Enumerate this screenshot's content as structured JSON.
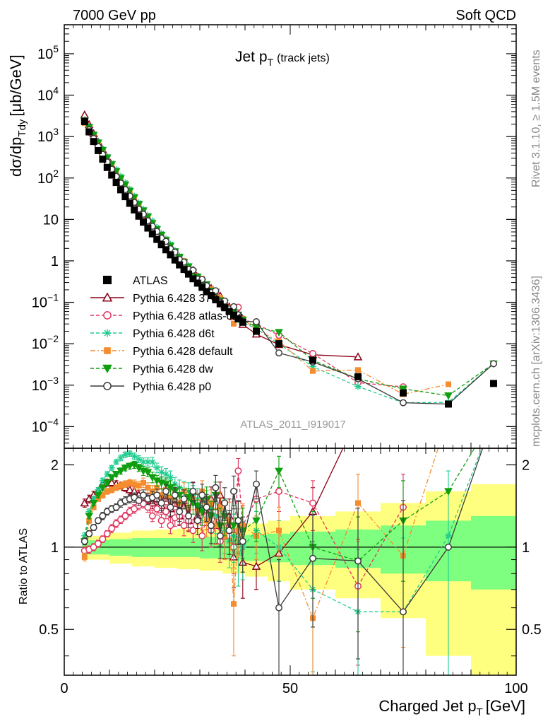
{
  "header": {
    "left": "7000 GeV pp",
    "right": "Soft QCD"
  },
  "side_text": {
    "rivet": "Rivet 3.1.10, ≥ 1.5M events",
    "mcplots": "mcplots.cern.ch [arXiv:1306.3436]"
  },
  "watermark": "ATLAS_2011_I919017",
  "chart_data": {
    "type": "line",
    "title": {
      "main": "Jet p",
      "sub": "T",
      "extra": "(track jets)"
    },
    "xlabel": {
      "main": "Charged Jet p",
      "sub": "T",
      "unit": "[GeV]"
    },
    "ylabel": {
      "main": "dσ/dp",
      "sub": "Tdy",
      "unit": "[μb/GeV]"
    },
    "ratio_ylabel": "Ratio to ATLAS",
    "xlim": [
      0,
      100
    ],
    "ylim": [
      3e-05,
      500000.0
    ],
    "ratio_ylim": [
      0.34,
      2.3
    ],
    "y_scale": "log",
    "ratio_scale": "log",
    "x_ticks": [
      0,
      50,
      100
    ],
    "y_tick_labels": [
      {
        "exp": "5",
        "value": 100000
      },
      {
        "exp": "4",
        "value": 10000
      },
      {
        "exp": "3",
        "value": 1000
      },
      {
        "exp": "2",
        "value": 100
      },
      {
        "text": "10",
        "value": 10
      },
      {
        "text": "1",
        "value": 1
      },
      {
        "exp": "−1",
        "value": 0.1
      },
      {
        "exp": "−2",
        "value": 0.01
      },
      {
        "exp": "−3",
        "value": 0.001
      },
      {
        "exp": "−4",
        "value": 0.0001
      }
    ],
    "ratio_ticks": [
      {
        "text": "2",
        "value": 2
      },
      {
        "text": "1",
        "value": 1
      },
      {
        "text": "0.5",
        "value": 0.5
      }
    ],
    "legend_position": "lower-left",
    "x": [
      4.5,
      5.5,
      6.5,
      7.5,
      8.5,
      9.5,
      10.5,
      11.5,
      12.5,
      13.5,
      14.5,
      15.5,
      16.5,
      17.5,
      18.5,
      19.5,
      20.5,
      21.5,
      22.5,
      23.5,
      24.5,
      25.5,
      26.5,
      27.5,
      28.5,
      29.5,
      30.5,
      31.5,
      32.5,
      33.5,
      34.5,
      35.5,
      36.5,
      37.5,
      38.5,
      39.5,
      42.5,
      47.5,
      55,
      65,
      75,
      85,
      95
    ],
    "data": {
      "name": "ATLAS",
      "values": [
        2300,
        1300,
        760,
        460,
        285,
        180,
        118,
        78,
        52,
        35.5,
        24.5,
        17,
        12,
        8.6,
        6.2,
        4.5,
        3.3,
        2.45,
        1.85,
        1.4,
        1.05,
        0.8,
        0.62,
        0.48,
        0.37,
        0.29,
        0.23,
        0.18,
        0.145,
        0.115,
        0.092,
        0.074,
        0.06,
        0.049,
        0.04,
        0.033,
        0.02,
        0.01,
        0.004,
        0.0016,
        0.00065,
        0.00035,
        0.0011
      ],
      "band_edges": [
        4,
        10,
        15,
        20,
        25,
        30,
        35,
        40,
        45,
        50,
        60,
        70,
        80,
        90,
        100
      ],
      "stat_band": [
        0.06,
        0.07,
        0.08,
        0.08,
        0.08,
        0.09,
        0.1,
        0.11,
        0.12,
        0.14,
        0.16,
        0.2,
        0.25,
        0.3
      ],
      "total_band": [
        0.1,
        0.13,
        0.15,
        0.16,
        0.17,
        0.18,
        0.2,
        0.22,
        0.25,
        0.3,
        0.35,
        0.45,
        0.6,
        0.7
      ]
    },
    "series": [
      {
        "name": "Pythia 6.428 370",
        "color": "#8b0016",
        "marker": "triangle-open",
        "dash": "",
        "ratio": [
          1.45,
          1.5,
          1.55,
          1.6,
          1.7,
          1.72,
          1.72,
          1.7,
          1.68,
          1.65,
          1.62,
          1.6,
          1.55,
          1.52,
          1.48,
          1.45,
          1.5,
          1.42,
          1.55,
          1.38,
          1.5,
          1.3,
          1.48,
          1.25,
          1.6,
          1.3,
          1.45,
          1.35,
          1.5,
          1.2,
          1.55,
          1.1,
          1.3,
          0.92,
          1.25,
          0.88,
          0.85,
          0.95,
          1.35,
          3.0,
          null,
          null,
          null
        ],
        "ratio_err": [
          0.05,
          0.05,
          0.05,
          0.05,
          0.05,
          0.05,
          0.05,
          0.05,
          0.05,
          0.05,
          0.06,
          0.06,
          0.06,
          0.06,
          0.07,
          0.07,
          0.07,
          0.08,
          0.08,
          0.09,
          0.09,
          0.1,
          0.1,
          0.11,
          0.12,
          0.13,
          0.14,
          0.15,
          0.16,
          0.17,
          0.18,
          0.19,
          0.2,
          0.21,
          0.22,
          0.23,
          0.15,
          0.2,
          0.3,
          0.5,
          0.0,
          0.0,
          0.0
        ]
      },
      {
        "name": "Pythia 6.428 atlas-csc",
        "color": "#e0355e",
        "marker": "circle-open",
        "dash": "5,3",
        "ratio": [
          0.97,
          0.98,
          1.0,
          1.03,
          1.07,
          1.12,
          1.17,
          1.22,
          1.26,
          1.3,
          1.35,
          1.38,
          1.42,
          1.44,
          1.4,
          1.3,
          1.38,
          1.25,
          1.35,
          1.2,
          1.28,
          1.3,
          1.2,
          1.25,
          1.15,
          1.45,
          1.1,
          1.3,
          1.15,
          1.35,
          1.05,
          1.25,
          1.1,
          1.0,
          1.9,
          1.2,
          1.5,
          1.6,
          1.45,
          0.72,
          1.4,
          null,
          null
        ],
        "ratio_err": [
          0.03,
          0.03,
          0.03,
          0.03,
          0.03,
          0.03,
          0.04,
          0.04,
          0.04,
          0.04,
          0.05,
          0.05,
          0.05,
          0.05,
          0.06,
          0.06,
          0.07,
          0.07,
          0.08,
          0.08,
          0.09,
          0.09,
          0.1,
          0.1,
          0.11,
          0.12,
          0.13,
          0.14,
          0.15,
          0.16,
          0.17,
          0.18,
          0.19,
          0.2,
          0.21,
          0.22,
          0.2,
          0.25,
          0.3,
          0.35,
          0.45,
          0.0,
          0.0
        ]
      },
      {
        "name": "Pythia 6.428 d6t",
        "color": "#1ecc8e",
        "marker": "star",
        "dash": "5,3",
        "ratio": [
          1.1,
          1.35,
          1.5,
          1.62,
          1.75,
          1.85,
          1.95,
          2.05,
          2.12,
          2.18,
          2.2,
          2.15,
          2.1,
          2.05,
          2.05,
          2.05,
          1.95,
          1.88,
          1.85,
          1.8,
          1.7,
          1.65,
          1.62,
          1.6,
          1.55,
          1.5,
          1.4,
          1.45,
          1.38,
          1.3,
          1.2,
          1.15,
          1.05,
          1.1,
          0.95,
          1.0,
          1.15,
          1.0,
          0.7,
          0.58,
          0.58,
          1.1,
          3.0
        ],
        "ratio_err": [
          0.03,
          0.03,
          0.03,
          0.03,
          0.04,
          0.04,
          0.04,
          0.04,
          0.05,
          0.05,
          0.05,
          0.06,
          0.06,
          0.07,
          0.07,
          0.08,
          0.08,
          0.09,
          0.09,
          0.1,
          0.1,
          0.11,
          0.12,
          0.12,
          0.13,
          0.14,
          0.15,
          0.16,
          0.17,
          0.18,
          0.19,
          0.2,
          0.21,
          0.22,
          0.23,
          0.24,
          0.2,
          0.25,
          0.35,
          0.4,
          0.5,
          0.8,
          0.0
        ]
      },
      {
        "name": "Pythia 6.428 default",
        "color": "#f58c2e",
        "marker": "square",
        "dash": "7,3,2,3",
        "ratio": [
          0.92,
          1.25,
          1.4,
          1.5,
          1.55,
          1.6,
          1.62,
          1.65,
          1.68,
          1.7,
          1.72,
          1.7,
          1.68,
          1.72,
          1.65,
          1.6,
          1.65,
          1.55,
          1.62,
          1.5,
          1.55,
          1.45,
          1.6,
          1.4,
          1.5,
          1.35,
          1.6,
          1.25,
          1.45,
          1.2,
          1.4,
          1.1,
          1.25,
          0.62,
          1.15,
          1.2,
          1.1,
          1.15,
          0.55,
          1.45,
          0.93,
          3.0,
          null
        ],
        "ratio_err": [
          0.03,
          0.03,
          0.03,
          0.03,
          0.04,
          0.04,
          0.04,
          0.04,
          0.05,
          0.05,
          0.05,
          0.06,
          0.06,
          0.07,
          0.07,
          0.08,
          0.08,
          0.09,
          0.09,
          0.1,
          0.1,
          0.11,
          0.12,
          0.12,
          0.13,
          0.14,
          0.15,
          0.16,
          0.17,
          0.18,
          0.19,
          0.2,
          0.21,
          0.22,
          0.23,
          0.24,
          0.2,
          0.25,
          0.35,
          0.4,
          0.5,
          0.0,
          0.0
        ]
      },
      {
        "name": "Pythia 6.428 dw",
        "color": "#0f9e0f",
        "marker": "triangle-down",
        "dash": "5,3",
        "ratio": [
          1.05,
          1.3,
          1.45,
          1.55,
          1.65,
          1.72,
          1.8,
          1.85,
          1.9,
          1.95,
          1.98,
          2.0,
          1.95,
          1.9,
          1.88,
          1.8,
          1.75,
          1.72,
          1.7,
          1.65,
          1.6,
          1.55,
          1.5,
          1.52,
          1.45,
          1.42,
          1.35,
          1.5,
          1.3,
          1.55,
          1.2,
          1.3,
          1.15,
          1.2,
          1.25,
          1.15,
          1.25,
          1.9,
          1.0,
          0.89,
          1.25,
          1.6,
          3.0
        ],
        "ratio_err": [
          0.03,
          0.03,
          0.03,
          0.03,
          0.04,
          0.04,
          0.04,
          0.04,
          0.05,
          0.05,
          0.05,
          0.06,
          0.06,
          0.07,
          0.07,
          0.08,
          0.08,
          0.09,
          0.09,
          0.1,
          0.1,
          0.11,
          0.12,
          0.12,
          0.13,
          0.14,
          0.15,
          0.16,
          0.17,
          0.18,
          0.19,
          0.2,
          0.21,
          0.22,
          0.23,
          0.24,
          0.2,
          0.25,
          0.35,
          0.4,
          0.5,
          0.0,
          0.0
        ]
      },
      {
        "name": "Pythia 6.428 p0",
        "color": "#3a3a3a",
        "marker": "circle-open",
        "dash": "",
        "ratio": [
          1.05,
          1.12,
          1.18,
          1.25,
          1.3,
          1.35,
          1.38,
          1.4,
          1.45,
          1.48,
          1.5,
          1.52,
          1.48,
          1.55,
          1.5,
          1.52,
          1.55,
          1.45,
          1.6,
          1.4,
          1.55,
          1.35,
          1.5,
          1.3,
          1.6,
          1.25,
          1.55,
          1.4,
          1.2,
          1.65,
          1.1,
          1.45,
          1.15,
          1.6,
          1.25,
          1.05,
          1.7,
          0.6,
          0.91,
          0.89,
          0.58,
          1.0,
          3.0
        ],
        "ratio_err": [
          0.03,
          0.03,
          0.03,
          0.03,
          0.04,
          0.04,
          0.04,
          0.04,
          0.05,
          0.05,
          0.05,
          0.06,
          0.06,
          0.07,
          0.07,
          0.08,
          0.08,
          0.09,
          0.09,
          0.1,
          0.1,
          0.11,
          0.12,
          0.12,
          0.13,
          0.14,
          0.15,
          0.16,
          0.17,
          0.18,
          0.19,
          0.2,
          0.21,
          0.22,
          0.23,
          0.24,
          0.2,
          0.3,
          0.4,
          0.5,
          0.9,
          0.0,
          0.0
        ]
      }
    ]
  }
}
